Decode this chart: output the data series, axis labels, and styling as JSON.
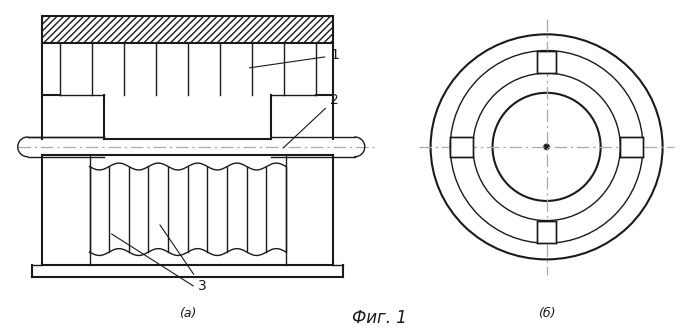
{
  "fig_width": 6.99,
  "fig_height": 3.3,
  "dpi": 100,
  "bg_color": "#ffffff",
  "line_color": "#1a1a1a",
  "center_line_color": "#aaaaaa",
  "label_a": "(a)",
  "label_b": "(б)",
  "fig_label": "Фиг. 1",
  "ann1": "1",
  "ann2": "2",
  "ann3": "3"
}
